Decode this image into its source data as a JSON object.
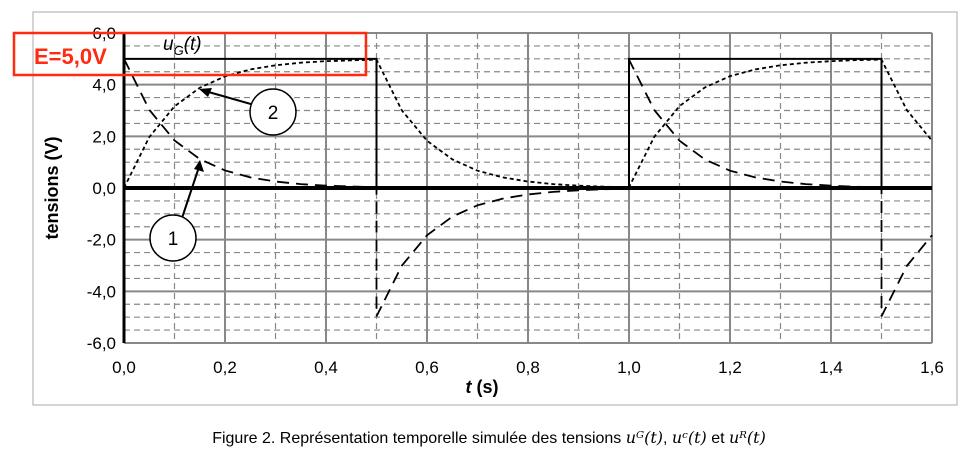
{
  "chart_data": {
    "type": "line",
    "title": "",
    "xlabel_var": "t",
    "xlabel_unit": " (s)",
    "ylabel": "tensions (V)",
    "xlim": [
      0,
      1.6
    ],
    "ylim": [
      -6,
      6
    ],
    "xticks": [
      "0,0",
      "0,2",
      "0,4",
      "0,6",
      "0,8",
      "1,0",
      "1,2",
      "1,4",
      "1,6"
    ],
    "xtick_values": [
      0,
      0.2,
      0.4,
      0.6,
      0.8,
      1.0,
      1.2,
      1.4,
      1.6
    ],
    "yticks": [
      "6,0",
      "4,0",
      "2,0",
      "0,0",
      "-2,0",
      "-4,0",
      "-6,0"
    ],
    "ytick_values": [
      6,
      4,
      2,
      0,
      -2,
      -4,
      -6
    ],
    "grid": true,
    "series": [
      {
        "name": "uG",
        "style": "solid",
        "x": [
          0,
          0.5,
          0.5,
          1.0,
          1.0,
          1.5,
          1.5,
          1.6
        ],
        "y": [
          5,
          5,
          0,
          0,
          5,
          5,
          0,
          0
        ]
      },
      {
        "name": "uC",
        "style": "dotted",
        "x": [
          0,
          0.05,
          0.1,
          0.15,
          0.2,
          0.25,
          0.3,
          0.35,
          0.4,
          0.45,
          0.5,
          0.55,
          0.6,
          0.65,
          0.7,
          0.75,
          0.8,
          0.85,
          0.9,
          0.95,
          1.0,
          1.05,
          1.1,
          1.15,
          1.2,
          1.25,
          1.3,
          1.35,
          1.4,
          1.45,
          1.5,
          1.55,
          1.6
        ],
        "y": [
          0,
          1.97,
          3.16,
          3.88,
          4.32,
          4.59,
          4.75,
          4.85,
          4.91,
          4.94,
          4.97,
          3.01,
          1.83,
          1.11,
          0.67,
          0.41,
          0.25,
          0.15,
          0.09,
          0.05,
          0.03,
          1.98,
          3.17,
          3.89,
          4.33,
          4.59,
          4.75,
          4.85,
          4.91,
          4.95,
          4.97,
          3.02,
          1.83
        ]
      },
      {
        "name": "uR",
        "style": "dashed",
        "x": [
          0,
          0.05,
          0.1,
          0.15,
          0.2,
          0.25,
          0.3,
          0.35,
          0.4,
          0.45,
          0.5,
          0.5,
          0.55,
          0.6,
          0.65,
          0.7,
          0.75,
          0.8,
          0.85,
          0.9,
          0.95,
          1.0,
          1.0,
          1.05,
          1.1,
          1.15,
          1.2,
          1.25,
          1.3,
          1.35,
          1.4,
          1.45,
          1.5,
          1.5,
          1.55,
          1.6
        ],
        "y": [
          5,
          3.03,
          1.84,
          1.12,
          0.68,
          0.41,
          0.25,
          0.15,
          0.09,
          0.06,
          0.03,
          -4.97,
          -3.01,
          -1.83,
          -1.11,
          -0.67,
          -0.41,
          -0.25,
          -0.15,
          -0.09,
          -0.05,
          -0.03,
          4.97,
          3.02,
          1.83,
          1.11,
          0.67,
          0.41,
          0.25,
          0.15,
          0.09,
          0.05,
          0.03,
          -4.97,
          -3.02,
          -1.83
        ]
      }
    ],
    "annotations": {
      "ug_label_var": "u",
      "ug_label_sub": "G",
      "ug_label_arg": "(t)",
      "callout_1": "1",
      "callout_2": "2",
      "e_box": "E=5,0V",
      "e_box_color": "#ff2a10"
    }
  },
  "caption": {
    "text": "Figure 2. Représentation temporelle simulée des tensions ",
    "ug": "uᴳ(t)",
    "sep1": ", ",
    "uc": "uᶜ(t)",
    "sep2": " et ",
    "ur": "uᴿ(t)"
  }
}
